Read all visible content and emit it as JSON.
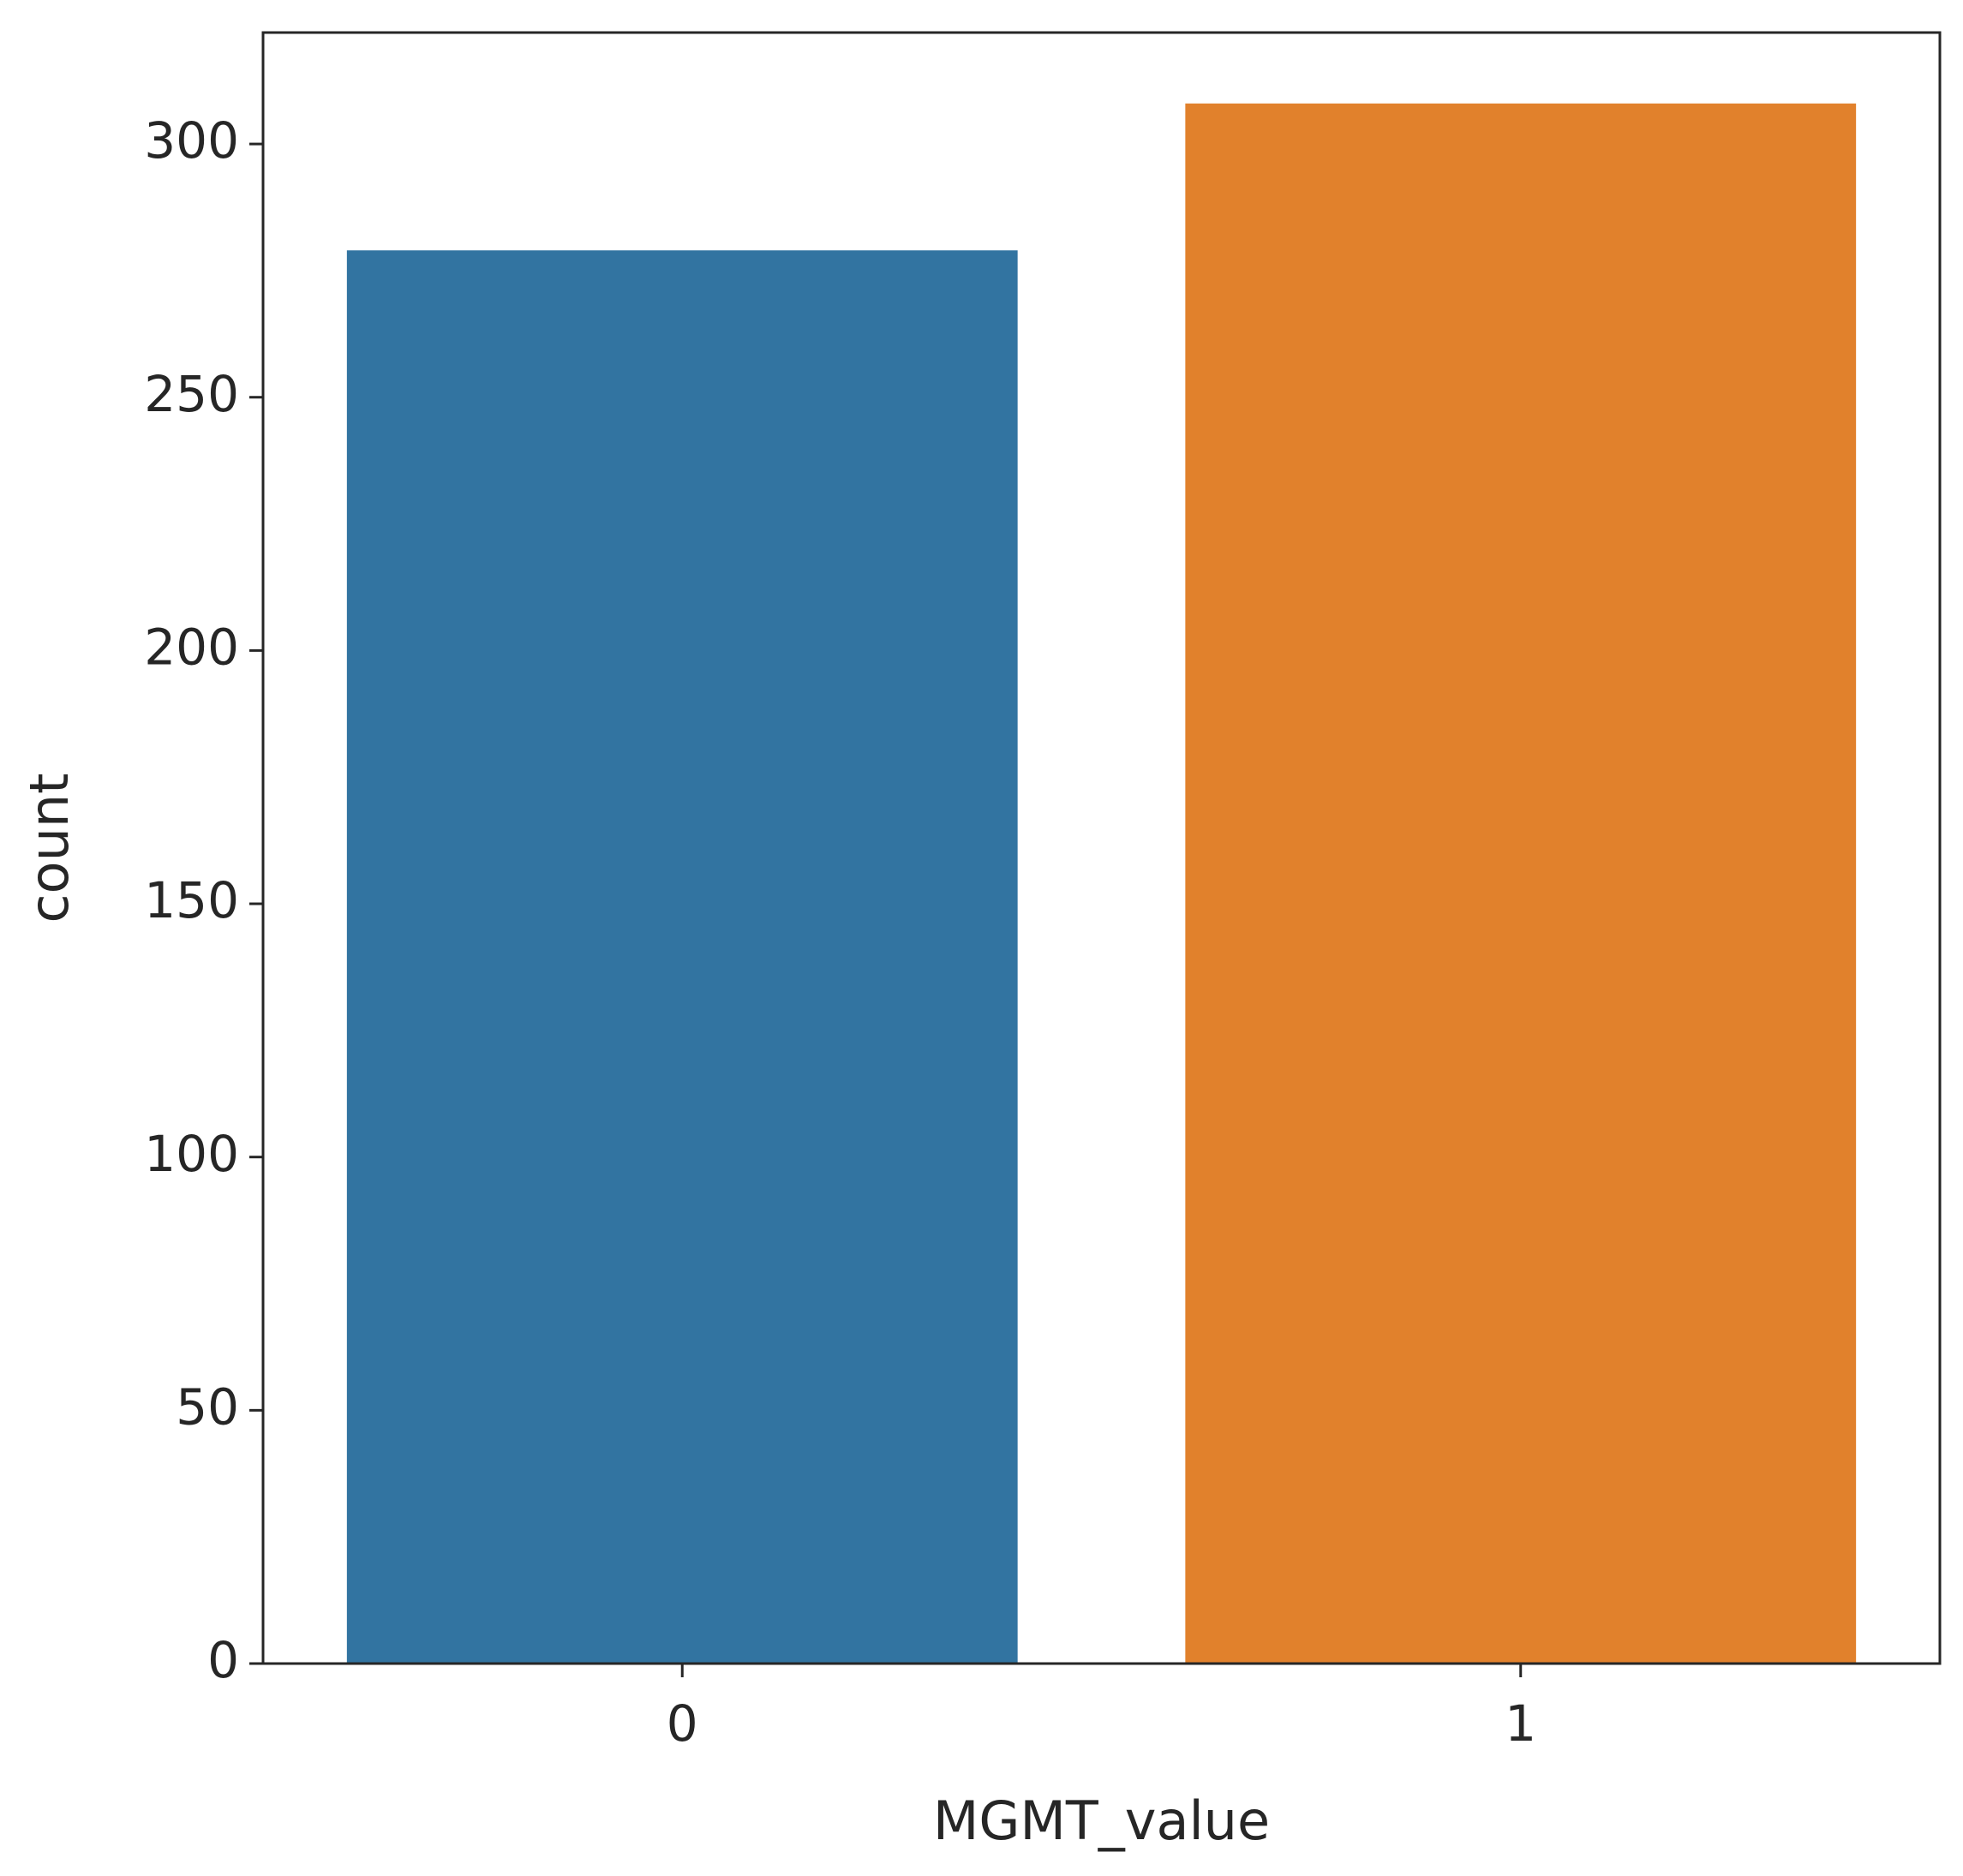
{
  "chart_data": {
    "type": "bar",
    "title": "",
    "xlabel": "MGMT_value",
    "ylabel": "count",
    "categories": [
      "0",
      "1"
    ],
    "values": [
      279,
      308
    ],
    "colors": [
      "#3274a1",
      "#e1812c"
    ],
    "ylim": [
      0,
      322
    ],
    "yticks": [
      0,
      50,
      100,
      150,
      200,
      250,
      300
    ],
    "grid": false
  }
}
